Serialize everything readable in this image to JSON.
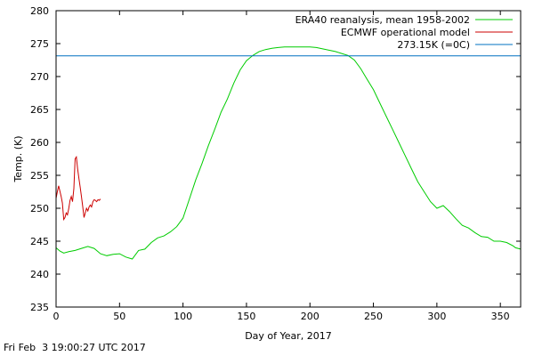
{
  "chart_data": {
    "type": "line",
    "title": "",
    "xlabel": "Day of Year, 2017",
    "ylabel": "Temp. (K)",
    "xlim": [
      0,
      366
    ],
    "ylim": [
      235,
      280
    ],
    "xticks": [
      0,
      50,
      100,
      150,
      200,
      250,
      300,
      350
    ],
    "yticks": [
      235,
      240,
      245,
      250,
      255,
      260,
      265,
      270,
      275,
      280
    ],
    "grid": false,
    "legend_position": "top-right",
    "series": [
      {
        "name": "ERA40 reanalysis, mean 1958-2002",
        "color": "#00cc00",
        "x": [
          0,
          3,
          6,
          10,
          15,
          20,
          25,
          30,
          35,
          40,
          45,
          50,
          55,
          60,
          65,
          70,
          75,
          80,
          85,
          90,
          95,
          100,
          105,
          110,
          115,
          120,
          125,
          130,
          135,
          140,
          145,
          150,
          155,
          160,
          165,
          170,
          175,
          180,
          185,
          190,
          195,
          200,
          205,
          210,
          215,
          220,
          225,
          230,
          235,
          240,
          245,
          250,
          255,
          260,
          265,
          270,
          275,
          280,
          285,
          290,
          295,
          300,
          305,
          310,
          315,
          320,
          325,
          330,
          335,
          340,
          345,
          350,
          355,
          360,
          362,
          366
        ],
        "y": [
          244.0,
          243.5,
          243.2,
          243.4,
          243.6,
          243.9,
          244.2,
          243.9,
          243.1,
          242.8,
          243.0,
          243.1,
          242.6,
          242.3,
          243.6,
          243.8,
          244.8,
          245.5,
          245.8,
          246.4,
          247.2,
          248.5,
          251.4,
          254.3,
          256.8,
          259.5,
          262.0,
          264.6,
          266.6,
          269.0,
          271.0,
          272.4,
          273.2,
          273.8,
          274.1,
          274.3,
          274.4,
          274.5,
          274.5,
          274.5,
          274.5,
          274.5,
          274.4,
          274.2,
          274.0,
          273.8,
          273.5,
          273.2,
          272.5,
          271.2,
          269.6,
          268.0,
          266.0,
          264.0,
          262.0,
          260.0,
          258.0,
          256.0,
          254.0,
          252.5,
          251.0,
          250.0,
          250.4,
          249.5,
          248.4,
          247.4,
          247.0,
          246.3,
          245.7,
          245.6,
          245.0,
          245.0,
          244.8,
          244.3,
          244.0,
          243.8
        ]
      },
      {
        "name": "ECMWF operational model",
        "color": "#cc0000",
        "x": [
          0,
          1,
          2,
          3,
          4,
          5,
          6,
          7,
          8,
          9,
          10,
          11,
          12,
          13,
          14,
          15,
          16,
          17,
          18,
          19,
          20,
          21,
          22,
          23,
          24,
          25,
          26,
          27,
          28,
          29,
          30,
          31,
          32,
          33,
          34,
          35
        ],
        "y": [
          251.5,
          252.5,
          253.4,
          252.6,
          251.8,
          250.8,
          248.3,
          248.6,
          249.3,
          249.0,
          250.0,
          251.2,
          251.8,
          251.0,
          253.0,
          257.5,
          257.8,
          256.0,
          254.5,
          253.2,
          251.8,
          250.2,
          248.6,
          249.3,
          250.0,
          249.6,
          250.2,
          250.5,
          250.2,
          251.0,
          251.3,
          251.2,
          251.0,
          251.3,
          251.2,
          251.4
        ]
      },
      {
        "name": "273.15K (=0C)",
        "color": "#0070c0",
        "x": [
          0,
          366
        ],
        "y": [
          273.15,
          273.15
        ]
      }
    ]
  },
  "footer": {
    "timestamp": "Fri Feb  3 19:00:27 UTC 2017"
  }
}
